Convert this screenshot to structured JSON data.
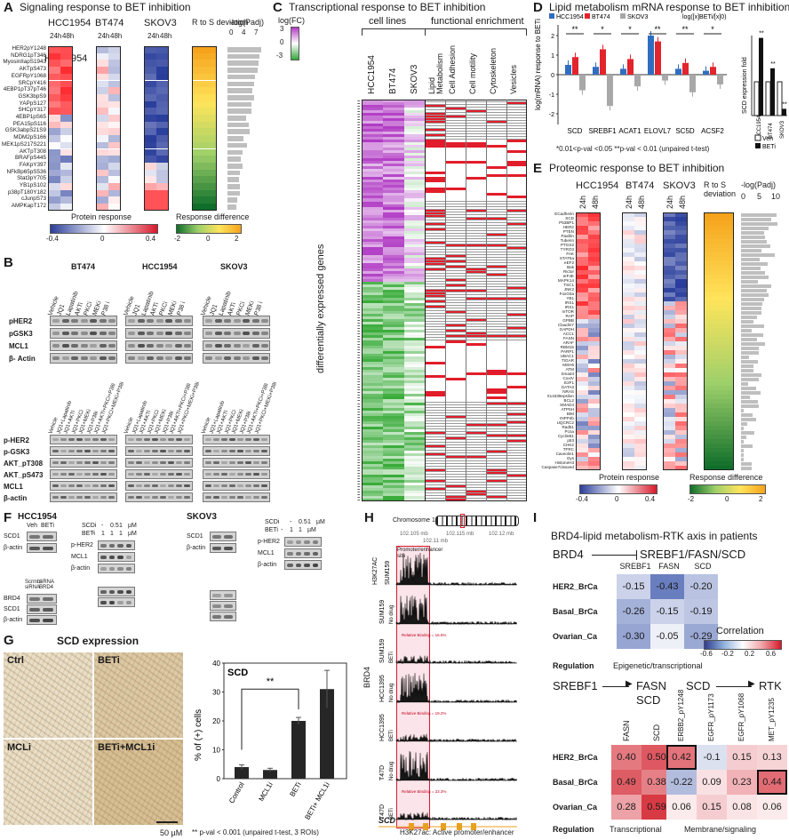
{
  "A": {
    "label": "A",
    "title": "Signaling response to BET inhibition",
    "cols": [
      "HCC1954",
      "BT474",
      "SKOV3"
    ],
    "times": [
      "24h",
      "48h"
    ],
    "deviation": "R to S deviation",
    "padj": "-log(Padj)",
    "padj_ticks": [
      "0",
      "4",
      "7"
    ],
    "rows": [
      "HER2pY1248",
      "NDRG1pT346",
      "MyosinIIapS1943",
      "AKTpS473",
      "EGFRpY1068",
      "SRCpY416",
      "4EBP1pT37pT46",
      "GSK3bpS9",
      "YAPpS127",
      "SHCpY317",
      "4EBP1pS65",
      "PEA15pS116",
      "GSK3abpS21S9",
      "MDM2pS166",
      "MEK1pS217S221",
      "AKTpT308",
      "BRAFpS445",
      "FAKpY397",
      "NFkBp65pS536",
      "Stat3pY705",
      "YB1pS102",
      "p38pT180Y182",
      "cJunpS73",
      "AMPKapT172"
    ],
    "legend1": "Protein response",
    "legend1_ticks": [
      "-0.4",
      "0",
      "0.4"
    ],
    "legend2": "Response difference",
    "legend2_ticks": [
      "-2",
      "0",
      "2"
    ]
  },
  "B": {
    "label": "B",
    "cells": [
      "BT474",
      "HCC1954",
      "SKOV3"
    ],
    "treat1": [
      "Vehicle",
      "JQ1",
      "Lapatinib",
      "AKTi",
      "PKCi",
      "MEKi",
      "P38 i"
    ],
    "rows1": [
      "pHER2",
      "pGSK3",
      "MCL1",
      "β- Actin"
    ],
    "treat2": [
      "Vehicle",
      "JQ1+Lapatinib",
      "JQ1+AKTi",
      "JQ1+PKCi",
      "JQ1+MEKi",
      "JQ1+P38i",
      "JQ1+AKTi+PKCi+P38i",
      "JQ1+PKCi+MEKi+P38i"
    ],
    "rows2": [
      "p-HER2",
      "p-GSK3",
      "AKT_pT308",
      "AKT_pS473",
      "MCL1",
      "β-actin"
    ]
  },
  "C": {
    "label": "C",
    "title": "Transcriptional response to BET inhibition",
    "scale_title": "log(FC)",
    "scale_ticks": [
      "3",
      "0",
      "-3"
    ],
    "group1": "cell lines",
    "group2": "functional enrichment",
    "cols1": [
      "HCC1954",
      "BT474",
      "SKOV3"
    ],
    "cols2": [
      "Lipid Metabolism",
      "Cell Adhesion",
      "Cell motility",
      "Cytoskeleton",
      "Vesicles"
    ],
    "ylabel": "differentially expressed genes"
  },
  "D": {
    "label": "D",
    "title": "Lipid metabolism mRNA response to BET inhibition",
    "legend": [
      "HCC1954",
      "BT474",
      "SKOV3"
    ],
    "ylabel": "log(mRNA) response to BETi",
    "genes": [
      "SCD",
      "SREBF1",
      "ACAT1",
      "ELOVL7",
      "SC5D",
      "ACSF2"
    ],
    "sig": [
      "**",
      "*",
      "*",
      "**",
      "**",
      "*"
    ],
    "formula": "log([x]BETi/[x]0)",
    "footnote": "*0.01<p-val <0.05  **p-val < 0.01 (unpaired t-test)",
    "right_ylabel": "SCD expression fold",
    "right_cells": [
      "HCC1954",
      "BT474",
      "SKOV3"
    ],
    "right_stars": [
      "**",
      "**",
      "**"
    ],
    "right_legend": [
      "Veh",
      "BETi"
    ],
    "y_ticks": [
      "2",
      "1",
      "0",
      "-1",
      "-2"
    ]
  },
  "E": {
    "label": "E",
    "title": "Proteomic response to BET inhibition",
    "cols": [
      "HCC1954",
      "BT474",
      "SKOV3"
    ],
    "times": [
      "24h",
      "48h"
    ],
    "deviation": "R to S deviation",
    "padj": "-log(Padj)",
    "padj_ticks": [
      "0",
      "5",
      "10"
    ],
    "rows": [
      "ECadherin",
      "SCD",
      "P53BP1",
      "HER2",
      "PTEN",
      "Paxillin",
      "Tuberin",
      "PTGS2",
      "TYRO3",
      "FAK",
      "STAT5a",
      "eEF2",
      "Bak",
      "Rictor",
      "eIF4E",
      "MAPK14",
      "TSC1",
      "JNK2",
      "FoxO3a",
      "YB1",
      "IRS1",
      "IRS1",
      "mTOR",
      "RAP",
      "GPBB",
      "Claudin7",
      "GAPDH",
      "ACC1",
      "FASN",
      "ARAF",
      "RBM15",
      "PARP1",
      "UBAC1",
      "TIGAR",
      "MSH6",
      "ATM",
      "Smad4",
      "CoxIV",
      "E2F1",
      "GATA3",
      "NRAS",
      "X14339epsilon",
      "BCL2",
      "SMAD4",
      "ATP5H",
      "BIM",
      "INPP4b",
      "UQCRC2",
      "Rad51",
      "Pcna",
      "CyclinB1",
      "p53",
      "CHK2",
      "TFRC",
      "Caveolin1",
      "Gys",
      "HistoneH3",
      "Caspase7cleaved"
    ],
    "legend1": "Protein response",
    "legend1_ticks": [
      "-0.4",
      "0",
      "0.4"
    ],
    "legend2": "Response difference",
    "legend2_ticks": [
      "-2",
      "0",
      "2"
    ]
  },
  "F": {
    "label": "F",
    "cell1": "HCC1954",
    "cell2": "SKOV3",
    "veh": "Veh",
    "beti": "BETi",
    "scdi": "SCDi",
    "scdi_vals": [
      "-",
      "0.5",
      "1",
      "µM"
    ],
    "beti_vals": [
      "-",
      "1",
      "1",
      "1",
      "µM"
    ],
    "scdi_vals2": [
      "-",
      "0.5",
      "1",
      "µM"
    ],
    "beti_vals2": [
      "-",
      "1",
      "1",
      "µM"
    ],
    "rows_a": [
      "SCD1",
      "β-actin"
    ],
    "rows_b": [
      "p-HER2",
      "MCL1",
      "β-actin"
    ],
    "rows_c": [
      "SCD1",
      "β-actin"
    ],
    "rows_d": [
      "p-HER2",
      "MCL1",
      "β-actin"
    ],
    "sirna": [
      "Scrmbl siRNA",
      "siRNA BRD4"
    ],
    "rows_e": [
      "BRD4",
      "SCD1",
      "β-actin"
    ]
  },
  "G": {
    "label": "G",
    "title": "SCD expression",
    "images": [
      "Ctrl",
      "BETi",
      "MCLi",
      "BETi+MCL1i"
    ],
    "scalebar": "50 µM",
    "chart_title": "SCD",
    "footnote": "** p-val < 0.001 (unpaired t-test, 3 ROIs)",
    "chart_data": {
      "type": "bar",
      "title": "SCD",
      "categories": [
        "Control",
        "MCL1i",
        "BETi",
        "BETi+ MCL1i"
      ],
      "values": [
        4,
        3,
        20,
        31
      ],
      "errors": [
        0.8,
        0.6,
        1.2,
        6.5
      ],
      "ylabel": "% of (+) cells",
      "ylim": [
        0,
        40
      ],
      "yticks": [
        "0",
        "10",
        "20",
        "30",
        "40"
      ],
      "significance": "**"
    }
  },
  "H": {
    "label": "H",
    "chromosome": "Chromosome 10",
    "coords": [
      "102.105 mb",
      "102.11 mb",
      "102.115 mb",
      "102.12 mb"
    ],
    "promoter": "Promoter/enhancer site",
    "tracks": [
      {
        "cell": "SUM159",
        "group": "H3K27AC",
        "cond": ""
      },
      {
        "cell": "SUM159",
        "group": "BRD4",
        "cond": "No drug"
      },
      {
        "cell": "SUM159",
        "group": "BRD4",
        "cond": "BETi",
        "rel": "Relative Binding = 16.5%"
      },
      {
        "cell": "HCC1395",
        "group": "BRD4",
        "cond": "No drug"
      },
      {
        "cell": "HCC1395",
        "group": "BRD4",
        "cond": "BETi",
        "rel": "Relative Binding = 19.2%"
      },
      {
        "cell": "T47D",
        "group": "BRD4",
        "cond": "No drug"
      },
      {
        "cell": "T47D",
        "group": "BRD4",
        "cond": "BETi",
        "rel": "Relative Binding = 23.3%"
      }
    ],
    "brd4": "BRD4",
    "h3k27ac": "H3K27AC",
    "gene": "SCD",
    "footer": "H3K27ac: Active promoter/enhancer"
  },
  "I": {
    "label": "I",
    "title": "BRD4-lipid metabolism-RTK axis in patients",
    "axis1_left": "BRD4",
    "axis1_right": "SREBF1/FASN/SCD",
    "top_cols": [
      "SREBF1",
      "FASN",
      "SCD"
    ],
    "rows": [
      "HER2_BrCa",
      "Basal_BrCa",
      "Ovarian_Ca"
    ],
    "top_vals": [
      [
        "-0.15",
        "-0.43",
        "-0.20"
      ],
      [
        "-0.26",
        "-0.15",
        "-0.19"
      ],
      [
        "-0.30",
        "-0.05",
        "-0.29"
      ]
    ],
    "regulation": "Regulation",
    "reg1": "Epigenetic/transcriptional",
    "corr_title": "Correlation",
    "corr_ticks": [
      "-0.6",
      "-0.2",
      "0.2",
      "0.6"
    ],
    "axis2_a": "SREBF1",
    "axis2_b": "FASN",
    "axis2_c": "SCD",
    "axis2_d": "SCD",
    "axis2_e": "RTK",
    "bot_cols1": [
      "FASN",
      "SCD"
    ],
    "bot_cols2": [
      "ERBB2_pY1248",
      "EGFR_pY1173",
      "EGFR_pY1068",
      "MET_pY1235"
    ],
    "bot_vals1": [
      [
        "0.40",
        "0.50"
      ],
      [
        "0.49",
        "0.38"
      ],
      [
        "0.28",
        "0.59"
      ]
    ],
    "bot_vals2": [
      [
        "0.42",
        "-0.1",
        "0.15",
        "0.13"
      ],
      [
        "-0.22",
        "0.09",
        "0.23",
        "0.44"
      ],
      [
        "0.06",
        "0.15",
        "0.08",
        "0.06"
      ]
    ],
    "reg2": "Transcriptional",
    "reg3": "Membrane/signaling"
  }
}
